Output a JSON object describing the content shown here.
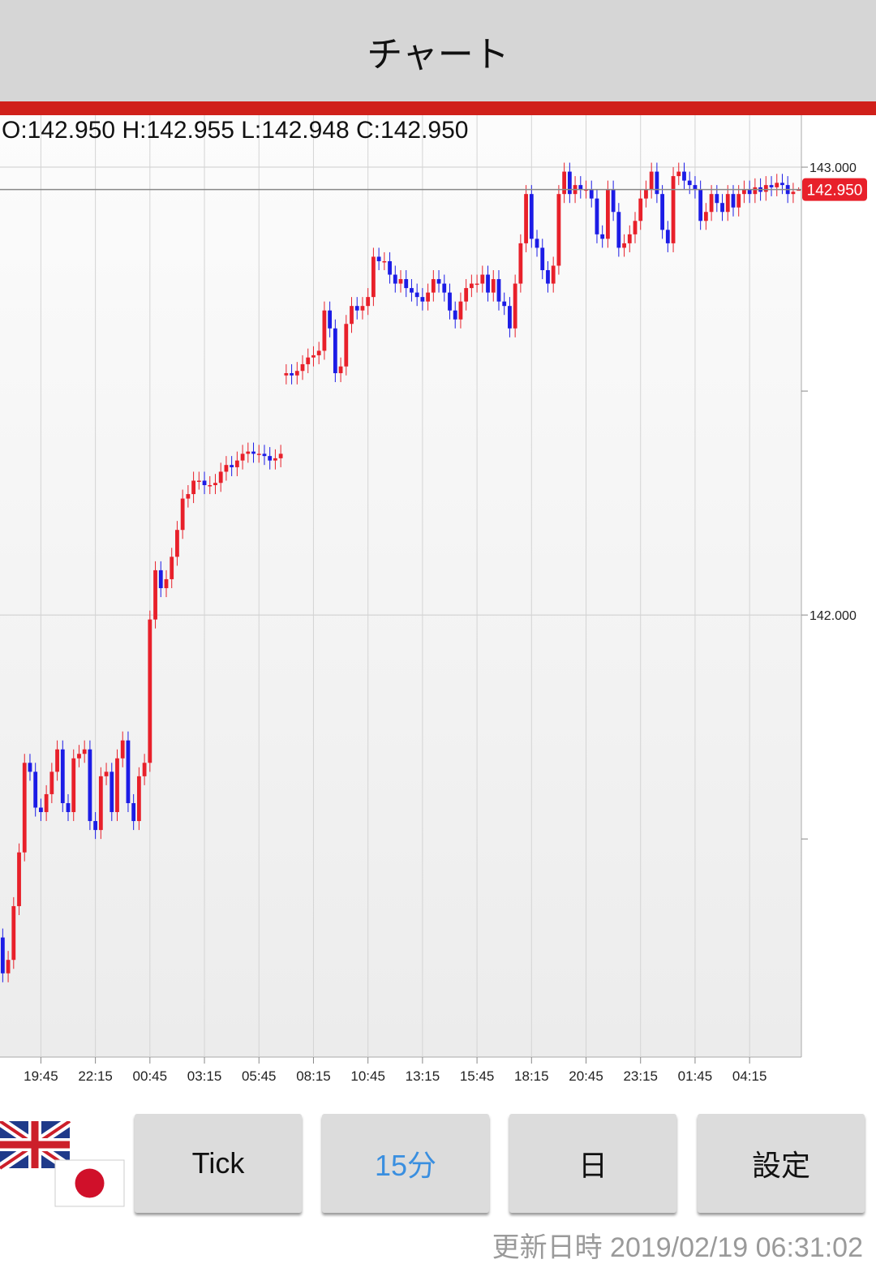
{
  "header": {
    "title": "チャート"
  },
  "ohlc_label": "O:142.950 H:142.955 L:142.948 C:142.950",
  "buttons": [
    "Tick",
    "15分",
    "日",
    "設定"
  ],
  "footer": {
    "updated_label": "更新日時",
    "updated_value": "2019/02/19 06:31:02"
  },
  "chart_data": {
    "type": "candlestick",
    "up_color": "#e8202a",
    "down_color": "#1c1ce6",
    "ylim": [
      141.013,
      143.116
    ],
    "yticks": [
      {
        "value": 143,
        "label": "143.000"
      },
      {
        "value": 142,
        "label": "142.000"
      }
    ],
    "minor_yticks": [
      142.5,
      141.5
    ],
    "last_price": {
      "value": 142.95,
      "label": "142.950"
    },
    "categories": [
      null,
      null,
      null,
      null,
      null,
      null,
      null,
      "19:45",
      null,
      null,
      null,
      null,
      null,
      null,
      null,
      null,
      null,
      "22:15",
      null,
      null,
      null,
      null,
      null,
      null,
      null,
      null,
      null,
      "00:45",
      null,
      null,
      null,
      null,
      null,
      null,
      null,
      null,
      null,
      "03:15",
      null,
      null,
      null,
      null,
      null,
      null,
      null,
      null,
      null,
      "05:45",
      null,
      null,
      null,
      null,
      null,
      null,
      null,
      null,
      null,
      "08:15",
      null,
      null,
      null,
      null,
      null,
      null,
      null,
      null,
      null,
      "10:45",
      null,
      null,
      null,
      null,
      null,
      null,
      null,
      null,
      null,
      "13:15",
      null,
      null,
      null,
      null,
      null,
      null,
      null,
      null,
      null,
      "15:45",
      null,
      null,
      null,
      null,
      null,
      null,
      null,
      null,
      null,
      "18:15",
      null,
      null,
      null,
      null,
      null,
      null,
      null,
      null,
      null,
      "20:45",
      null,
      null,
      null,
      null,
      null,
      null,
      null,
      null,
      null,
      "23:15",
      null,
      null,
      null,
      null,
      null,
      null,
      null,
      null,
      null,
      "01:45",
      null,
      null,
      null,
      null,
      null,
      null,
      null,
      null,
      null,
      "04:15",
      null,
      null,
      null,
      null,
      null,
      null,
      null,
      null,
      null
    ],
    "open": [
      141.28,
      141.2,
      141.23,
      141.35,
      141.47,
      141.67,
      141.65,
      141.57,
      141.56,
      141.6,
      141.65,
      141.7,
      141.58,
      141.56,
      141.68,
      141.69,
      141.7,
      141.54,
      141.52,
      141.64,
      141.65,
      141.56,
      141.68,
      141.72,
      141.58,
      141.54,
      141.64,
      141.67,
      141.99,
      142.1,
      142.06,
      142.08,
      142.13,
      142.19,
      142.26,
      142.27,
      142.3,
      142.3,
      142.29,
      142.29,
      142.295,
      142.32,
      142.335,
      142.33,
      142.345,
      142.36,
      142.365,
      142.36,
      142.36,
      142.355,
      142.345,
      142.35,
      142.535,
      142.54,
      142.535,
      142.545,
      142.56,
      142.575,
      142.58,
      142.59,
      142.68,
      142.64,
      142.54,
      142.555,
      142.65,
      142.69,
      142.68,
      142.69,
      142.71,
      142.8,
      142.79,
      142.79,
      142.76,
      142.74,
      142.75,
      142.73,
      142.72,
      142.71,
      142.7,
      142.72,
      142.75,
      142.74,
      142.72,
      142.68,
      142.66,
      142.7,
      142.73,
      142.74,
      142.74,
      142.76,
      142.72,
      142.75,
      142.7,
      142.69,
      142.64,
      142.74,
      142.83,
      142.94,
      142.84,
      142.82,
      142.77,
      142.74,
      142.78,
      142.94,
      142.99,
      142.94,
      142.96,
      142.95,
      142.95,
      142.93,
      142.85,
      142.84,
      142.95,
      142.9,
      142.82,
      142.83,
      142.85,
      142.88,
      142.93,
      142.95,
      142.99,
      142.94,
      142.86,
      142.83,
      142.98,
      142.99,
      142.97,
      142.96,
      142.95,
      142.88,
      142.9,
      142.94,
      142.92,
      142.9,
      142.94,
      142.91,
      142.94,
      142.95,
      142.94,
      142.955,
      142.945,
      142.96,
      142.955,
      142.965,
      142.96,
      142.94,
      142.95
    ],
    "high": [
      141.3,
      141.25,
      141.37,
      141.49,
      141.69,
      141.69,
      141.67,
      141.59,
      141.62,
      141.67,
      141.72,
      141.72,
      141.6,
      141.7,
      141.71,
      141.72,
      141.72,
      141.56,
      141.66,
      141.67,
      141.67,
      141.7,
      141.74,
      141.74,
      141.6,
      141.66,
      141.69,
      142.01,
      142.12,
      142.12,
      142.1,
      142.15,
      142.21,
      142.28,
      142.29,
      142.32,
      142.32,
      142.32,
      142.31,
      142.315,
      142.34,
      142.355,
      142.355,
      142.365,
      142.38,
      142.385,
      142.385,
      142.38,
      142.38,
      142.375,
      142.37,
      142.38,
      142.56,
      142.56,
      142.565,
      142.58,
      142.595,
      142.6,
      142.61,
      142.7,
      142.7,
      142.66,
      142.575,
      142.67,
      142.71,
      142.71,
      142.71,
      142.73,
      142.82,
      142.82,
      142.81,
      142.81,
      142.78,
      142.77,
      142.77,
      142.75,
      142.74,
      142.73,
      142.74,
      142.77,
      142.77,
      142.76,
      142.74,
      142.7,
      142.72,
      142.75,
      142.76,
      142.76,
      142.78,
      142.78,
      142.77,
      142.77,
      142.72,
      142.71,
      142.76,
      142.85,
      142.96,
      142.96,
      142.86,
      142.84,
      142.79,
      142.8,
      142.96,
      143.01,
      143.01,
      142.98,
      142.98,
      142.97,
      142.97,
      142.95,
      142.87,
      142.97,
      142.97,
      142.92,
      142.85,
      142.87,
      142.9,
      142.95,
      142.97,
      143.01,
      143.01,
      142.96,
      142.88,
      143.0,
      143.01,
      143.01,
      142.99,
      142.98,
      142.97,
      142.92,
      142.96,
      142.96,
      142.94,
      142.96,
      142.96,
      142.96,
      142.97,
      142.97,
      142.975,
      142.975,
      142.98,
      142.98,
      142.985,
      142.985,
      142.98,
      142.965,
      142.955
    ],
    "low": [
      141.18,
      141.18,
      141.21,
      141.33,
      141.45,
      141.63,
      141.55,
      141.54,
      141.54,
      141.58,
      141.63,
      141.56,
      141.54,
      141.54,
      141.66,
      141.67,
      141.52,
      141.5,
      141.5,
      141.62,
      141.54,
      141.54,
      141.66,
      141.56,
      141.52,
      141.52,
      141.62,
      141.65,
      141.97,
      142.04,
      142.04,
      142.06,
      142.11,
      142.17,
      142.24,
      142.25,
      142.28,
      142.27,
      142.27,
      142.27,
      142.275,
      142.3,
      142.31,
      142.31,
      142.325,
      142.34,
      142.34,
      142.34,
      142.335,
      142.325,
      142.325,
      142.33,
      142.515,
      142.515,
      142.515,
      142.525,
      142.54,
      142.555,
      142.56,
      142.57,
      142.62,
      142.52,
      142.52,
      142.535,
      142.63,
      142.66,
      142.66,
      142.67,
      142.69,
      142.77,
      142.77,
      142.74,
      142.72,
      142.72,
      142.71,
      142.7,
      142.69,
      142.68,
      142.68,
      142.7,
      142.72,
      142.7,
      142.66,
      142.64,
      142.64,
      142.68,
      142.71,
      142.72,
      142.72,
      142.7,
      142.7,
      142.68,
      142.67,
      142.62,
      142.62,
      142.72,
      142.81,
      142.82,
      142.8,
      142.75,
      142.72,
      142.72,
      142.76,
      142.92,
      142.92,
      142.92,
      142.93,
      142.93,
      142.91,
      142.83,
      142.82,
      142.82,
      142.88,
      142.8,
      142.8,
      142.81,
      142.83,
      142.86,
      142.91,
      142.93,
      142.92,
      142.84,
      142.81,
      142.81,
      142.96,
      142.95,
      142.94,
      142.93,
      142.86,
      142.86,
      142.88,
      142.9,
      142.88,
      142.88,
      142.89,
      142.89,
      142.92,
      142.92,
      142.92,
      142.925,
      142.925,
      142.935,
      142.935,
      142.94,
      142.92,
      142.92,
      142.948
    ],
    "close": [
      141.2,
      141.23,
      141.35,
      141.47,
      141.67,
      141.65,
      141.57,
      141.56,
      141.6,
      141.65,
      141.7,
      141.58,
      141.56,
      141.68,
      141.69,
      141.7,
      141.54,
      141.52,
      141.64,
      141.65,
      141.56,
      141.68,
      141.72,
      141.58,
      141.54,
      141.64,
      141.67,
      141.99,
      142.1,
      142.06,
      142.08,
      142.13,
      142.19,
      142.26,
      142.27,
      142.3,
      142.3,
      142.29,
      142.29,
      142.295,
      142.32,
      142.335,
      142.33,
      142.345,
      142.36,
      142.365,
      142.36,
      142.36,
      142.355,
      142.345,
      142.35,
      142.36,
      142.54,
      142.535,
      142.545,
      142.56,
      142.575,
      142.58,
      142.59,
      142.68,
      142.64,
      142.54,
      142.555,
      142.65,
      142.69,
      142.68,
      142.69,
      142.71,
      142.8,
      142.79,
      142.79,
      142.76,
      142.74,
      142.75,
      142.73,
      142.72,
      142.71,
      142.7,
      142.72,
      142.75,
      142.74,
      142.72,
      142.68,
      142.66,
      142.7,
      142.73,
      142.74,
      142.74,
      142.76,
      142.72,
      142.75,
      142.7,
      142.69,
      142.64,
      142.74,
      142.83,
      142.94,
      142.84,
      142.82,
      142.77,
      142.74,
      142.78,
      142.94,
      142.99,
      142.94,
      142.96,
      142.95,
      142.95,
      142.93,
      142.85,
      142.84,
      142.95,
      142.9,
      142.82,
      142.83,
      142.85,
      142.88,
      142.93,
      142.95,
      142.99,
      142.94,
      142.86,
      142.83,
      142.98,
      142.99,
      142.97,
      142.96,
      142.95,
      142.88,
      142.9,
      142.94,
      142.92,
      142.9,
      142.94,
      142.91,
      142.94,
      142.95,
      142.94,
      142.955,
      142.945,
      142.96,
      142.955,
      142.965,
      142.96,
      142.94,
      142.945,
      142.95
    ]
  }
}
